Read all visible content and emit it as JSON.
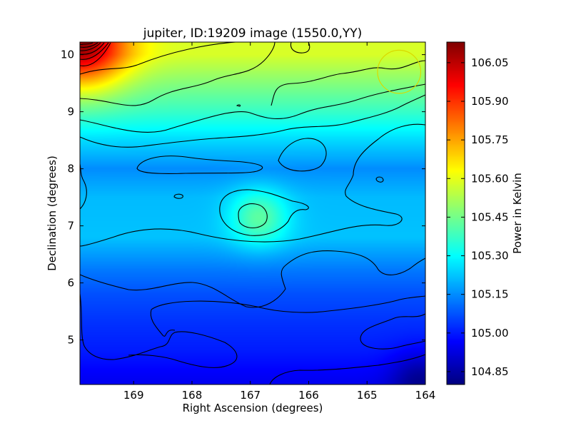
{
  "chart_data": {
    "type": "heatmap",
    "title": "jupiter, ID:19209 image (1550.0,YY)",
    "xlabel": "Right Ascension (degrees)",
    "ylabel": "Declination (degrees)",
    "xlim": [
      169.92,
      164.0
    ],
    "ylim": [
      4.22,
      10.22
    ],
    "x_reversed": true,
    "x_ticks": [
      "169",
      "168",
      "167",
      "166",
      "165",
      "164"
    ],
    "x_tick_values": [
      169,
      168,
      167,
      166,
      165,
      164
    ],
    "y_ticks": [
      "5",
      "6",
      "7",
      "8",
      "9",
      "10"
    ],
    "y_tick_values": [
      5,
      6,
      7,
      8,
      9,
      10
    ],
    "colormap": "jet",
    "colorbar": {
      "label": "Power in Kelvin",
      "range": [
        104.8,
        106.13
      ],
      "ticks": [
        "104.85",
        "105.00",
        "105.15",
        "105.30",
        "105.45",
        "105.60",
        "105.75",
        "105.90",
        "106.05"
      ],
      "tick_values": [
        104.85,
        105.0,
        105.15,
        105.3,
        105.45,
        105.6,
        105.75,
        105.9,
        106.05
      ]
    },
    "power_profile_by_declination": [
      {
        "dec": 4.3,
        "power": 104.95
      },
      {
        "dec": 4.8,
        "power": 105.0
      },
      {
        "dec": 5.3,
        "power": 105.03
      },
      {
        "dec": 5.8,
        "power": 105.07
      },
      {
        "dec": 6.2,
        "power": 105.12
      },
      {
        "dec": 6.8,
        "power": 105.22
      },
      {
        "dec": 7.5,
        "power": 105.21
      },
      {
        "dec": 8.0,
        "power": 105.15
      },
      {
        "dec": 8.5,
        "power": 105.25
      },
      {
        "dec": 9.0,
        "power": 105.37
      },
      {
        "dec": 9.5,
        "power": 105.47
      },
      {
        "dec": 10.0,
        "power": 105.58
      }
    ],
    "features": [
      {
        "kind": "maximum",
        "ra": 169.9,
        "dec": 10.2,
        "power": 106.1
      },
      {
        "kind": "local-maximum",
        "ra": 166.85,
        "dec": 7.15,
        "power": 105.42
      },
      {
        "kind": "local-minimum",
        "ra": 164.1,
        "dec": 4.3,
        "power": 104.82
      }
    ],
    "beam_marker": {
      "ra": 164.45,
      "dec": 9.7,
      "radius_deg": 0.37,
      "color": "#d9d900"
    }
  }
}
